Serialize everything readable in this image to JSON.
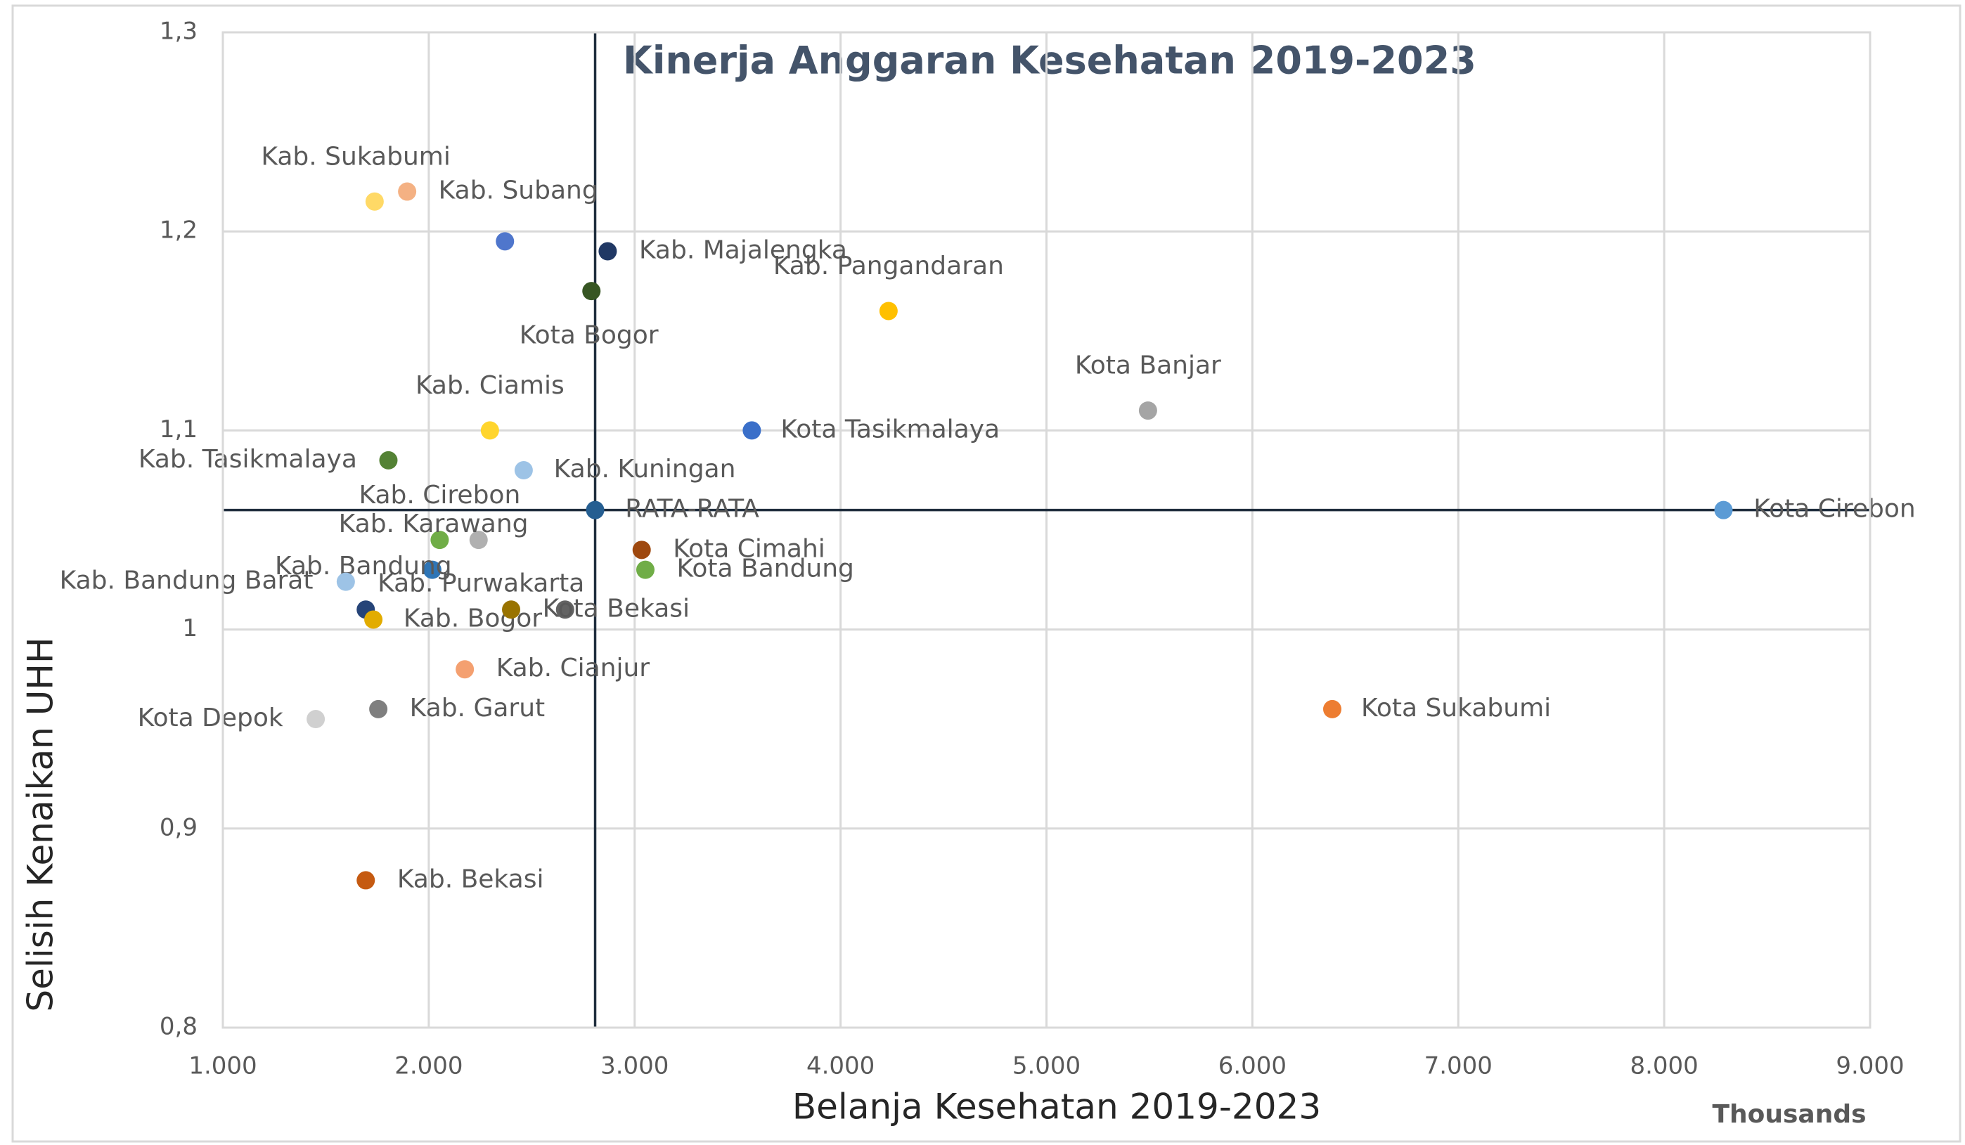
{
  "chart_data": {
    "type": "scatter",
    "title": "Kinerja Anggaran Kesehatan 2019-2023",
    "x_label": "Belanja Kesehatan 2019-2023",
    "y_label": "Selisih Kenaikan UHH",
    "x_unit_label": "Thousands",
    "x": [
      1737,
      1895,
      2370,
      2869,
      2790,
      4233,
      5493,
      2297,
      3569,
      1804,
      2461,
      2808,
      8288,
      2053,
      2242,
      3034,
      3052,
      2017,
      1597,
      1694,
      1731,
      2400,
      2662,
      2175,
      1755,
      1451,
      6388,
      1694
    ],
    "values": [
      1.215,
      1.22,
      1.195,
      1.19,
      1.17,
      1.16,
      1.11,
      1.1,
      1.1,
      1.085,
      1.08,
      1.06,
      1.06,
      1.045,
      1.045,
      1.04,
      1.03,
      1.03,
      1.024,
      1.01,
      1.005,
      1.01,
      1.01,
      0.98,
      0.96,
      0.955,
      0.96,
      0.874
    ],
    "labels": [
      "Kab. Sukabumi",
      "Kab. Subang",
      null,
      "Kab. Majalengka",
      "Kota Bogor",
      "Kab. Pangandaran",
      "Kota Banjar",
      "Kab. Ciamis",
      "Kota Tasikmalaya",
      "Kab. Tasikmalaya",
      "Kab. Kuningan",
      "RATA-RATA",
      "Kota Cirebon",
      "Kab. Cirebon",
      "Kab. Karawang",
      "Kota Cimahi",
      "Kota Bandung",
      "Kab. Bandung",
      "Kab. Bandung Barat",
      null,
      "Kab. Bogor",
      "Kab. Purwakarta",
      "Kota Bekasi",
      "Kab. Cianjur",
      "Kab. Garut",
      "Kota Depok",
      "Kota Sukabumi",
      "Kab. Bekasi"
    ],
    "colors": [
      "#ffd966",
      "#f4b183",
      "#4f76cc",
      "#203864",
      "#375623",
      "#ffc000",
      "#a5a5a5",
      "#ffd52e",
      "#3a6fc9",
      "#548235",
      "#9dc3e6",
      "#255e91",
      "#5b9bd5",
      "#70ad47",
      "#b0b0b0",
      "#9e480e",
      "#70ad47",
      "#2e75b6",
      "#9dc3e6",
      "#264478",
      "#e2ac00",
      "#997300",
      "#636363",
      "#f4a070",
      "#7f7f7f",
      "#d0d0d0",
      "#ed7d31",
      "#c55a11"
    ],
    "xlim": [
      1000,
      9000
    ],
    "xticks": [
      {
        "value": 1000,
        "label": "1.000"
      },
      {
        "value": 2000,
        "label": "2.000"
      },
      {
        "value": 3000,
        "label": "3.000"
      },
      {
        "value": 4000,
        "label": "4.000"
      },
      {
        "value": 5000,
        "label": "5.000"
      },
      {
        "value": 6000,
        "label": "6.000"
      },
      {
        "value": 7000,
        "label": "7.000"
      },
      {
        "value": 8000,
        "label": "8.000"
      },
      {
        "value": 9000,
        "label": "9.000"
      }
    ],
    "ylim": [
      0.8,
      1.3
    ],
    "yticks": [
      {
        "value": 0.8,
        "label": "0,8"
      },
      {
        "value": 0.9,
        "label": "0,9"
      },
      1,
      {
        "value": 1.1,
        "label": "1,1"
      },
      {
        "value": 1.2,
        "label": "1,2"
      },
      {
        "value": 1.3,
        "label": "1,3"
      }
    ],
    "grid": true
  }
}
